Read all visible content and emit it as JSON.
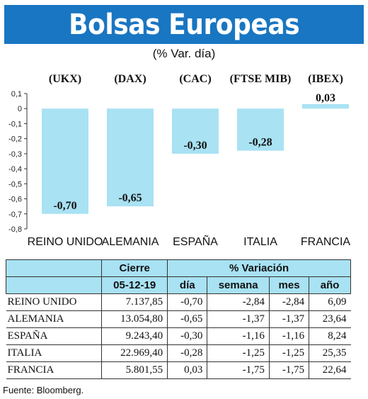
{
  "header": {
    "title": "Bolsas Europeas"
  },
  "subtitle": "(% Var. día)",
  "chart_data": {
    "type": "bar",
    "title": "Bolsas Europeas",
    "subtitle": "(% Var. día)",
    "index_codes": [
      "(UKX)",
      "(DAX)",
      "(CAC)",
      "(FTSE MIB)",
      "(IBEX)"
    ],
    "categories": [
      "REINO UNIDO",
      "ALEMANIA",
      "ESPAÑA",
      "ITALIA",
      "FRANCIA"
    ],
    "values": [
      -0.7,
      -0.65,
      -0.3,
      -0.28,
      0.03
    ],
    "value_labels": [
      "-0,70",
      "-0,65",
      "-0,30",
      "-0,28",
      "0,03"
    ],
    "ylim": [
      -0.8,
      0.1
    ],
    "yticks": [
      0.1,
      0,
      -0.1,
      -0.2,
      -0.3,
      -0.4,
      -0.5,
      -0.6,
      -0.7,
      -0.8
    ],
    "ytick_labels": [
      "0,1",
      "0",
      "-0,1",
      "-0,2",
      "-0,3",
      "-0,4",
      "-0,5",
      "-0,6",
      "-0,7",
      "-0,8"
    ],
    "bar_color": "#a8e2f3",
    "grid": false
  },
  "table": {
    "group_headers": {
      "cierre": "Cierre",
      "variacion": "% Variación"
    },
    "sub_headers": {
      "date": "05-12-19",
      "dia": "día",
      "semana": "semana",
      "mes": "mes",
      "ano": "año"
    },
    "rows": [
      {
        "name": "REINO UNIDO",
        "cierre": "7.137,85",
        "dia": "-0,70",
        "semana": "-2,84",
        "mes": "-2,84",
        "ano": "6,09"
      },
      {
        "name": "ALEMANIA",
        "cierre": "13.054,80",
        "dia": "-0,65",
        "semana": "-1,37",
        "mes": "-1,37",
        "ano": "23,64"
      },
      {
        "name": "ESPAÑA",
        "cierre": "9.243,40",
        "dia": "-0,30",
        "semana": "-1,16",
        "mes": "-1,16",
        "ano": "8,24"
      },
      {
        "name": "ITALIA",
        "cierre": "22.969,40",
        "dia": "-0,28",
        "semana": "-1,25",
        "mes": "-1,25",
        "ano": "25,35"
      },
      {
        "name": "FRANCIA",
        "cierre": "5.801,55",
        "dia": "0,03",
        "semana": "-1,75",
        "mes": "-1,75",
        "ano": "22,64"
      }
    ]
  },
  "source": "Fuente: Bloomberg.",
  "colors": {
    "header_bg": "#1976c2",
    "header_text": "#ffffff",
    "table_header_bg": "#a8e2f3"
  }
}
